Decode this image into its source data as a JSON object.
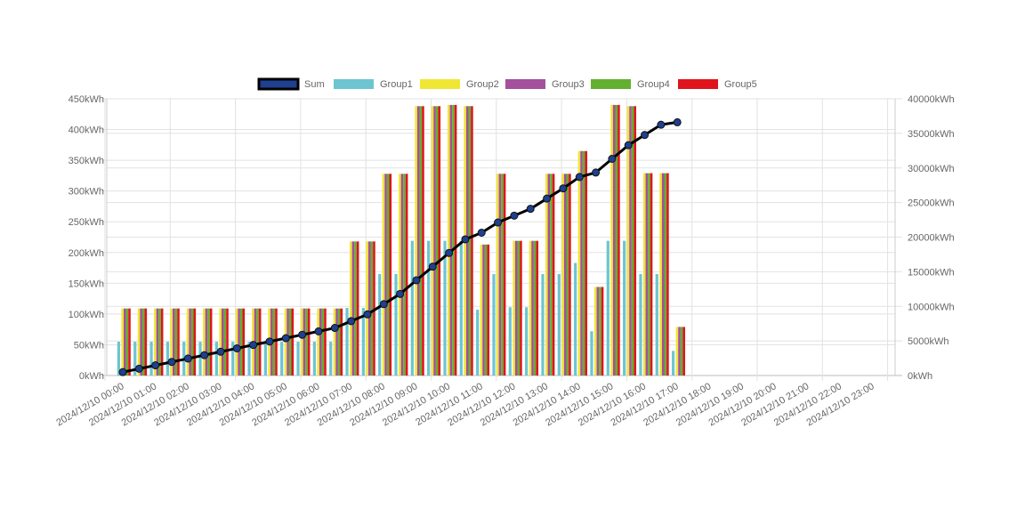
{
  "chart_data": {
    "type": "bar",
    "title": "",
    "x_tick_labels": [
      "2024/12/10 00:00",
      "2024/12/10 01:00",
      "2024/12/10 02:00",
      "2024/12/10 03:00",
      "2024/12/10 04:00",
      "2024/12/10 05:00",
      "2024/12/10 06:00",
      "2024/12/10 07:00",
      "2024/12/10 08:00",
      "2024/12/10 09:00",
      "2024/12/10 10:00",
      "2024/12/10 11:00",
      "2024/12/10 12:00",
      "2024/12/10 13:00",
      "2024/12/10 14:00",
      "2024/12/10 15:00",
      "2024/12/10 16:00",
      "2024/12/10 17:00",
      "2024/12/10 18:00",
      "2024/12/10 19:00",
      "2024/12/10 20:00",
      "2024/12/10 21:00",
      "2024/12/10 22:00",
      "2024/12/10 23:00"
    ],
    "x": [
      "00:00",
      "00:30",
      "01:00",
      "01:30",
      "02:00",
      "02:30",
      "03:00",
      "03:30",
      "04:00",
      "04:30",
      "05:00",
      "05:30",
      "06:00",
      "06:30",
      "07:00",
      "07:30",
      "08:00",
      "08:30",
      "09:00",
      "09:30",
      "10:00",
      "10:30",
      "11:00",
      "11:30",
      "12:00",
      "12:30",
      "13:00",
      "13:30",
      "14:00",
      "14:30",
      "15:00",
      "15:30",
      "16:00",
      "16:30",
      "17:00"
    ],
    "left_axis": {
      "ticks": [
        "0kWh",
        "50kWh",
        "100kWh",
        "150kWh",
        "200kWh",
        "250kWh",
        "300kWh",
        "350kWh",
        "400kWh",
        "450kWh"
      ],
      "ylim": [
        0,
        450
      ]
    },
    "right_axis": {
      "ticks": [
        "0kWh",
        "5000kWh",
        "10000kWh",
        "15000kWh",
        "20000kWh",
        "25000kWh",
        "30000kWh",
        "35000kWh",
        "40000kWh"
      ],
      "ylim": [
        0,
        40000
      ]
    },
    "grid": true,
    "legend_position": "top",
    "series": [
      {
        "name": "Sum",
        "type": "line",
        "axis": "right",
        "color": "#1f3f8f",
        "values": [
          491,
          982,
          1473,
          1964,
          2455,
          2946,
          3437,
          3928,
          4419,
          4910,
          5401,
          5892,
          6383,
          6874,
          7856,
          8838,
          10315,
          11792,
          13763,
          15734,
          17713,
          19684,
          20643,
          22120,
          23107,
          24094,
          25571,
          27048,
          28691,
          29339,
          31318,
          33289,
          34770,
          36251,
          36607
        ]
      },
      {
        "name": "Group1",
        "type": "bar",
        "axis": "left",
        "color": "#6cc5d1",
        "values": [
          55,
          55,
          55,
          55,
          55,
          55,
          55,
          55,
          55,
          55,
          55,
          55,
          55,
          55,
          110,
          110,
          165,
          165,
          219,
          219,
          219,
          219,
          107,
          165,
          111,
          111,
          165,
          165,
          183,
          72,
          219,
          219,
          165,
          165,
          40
        ]
      },
      {
        "name": "Group2",
        "type": "bar",
        "axis": "left",
        "color": "#f0e635",
        "values": [
          109,
          109,
          109,
          109,
          109,
          109,
          109,
          109,
          109,
          109,
          109,
          109,
          109,
          109,
          218,
          218,
          328,
          328,
          438,
          438,
          440,
          438,
          213,
          328,
          219,
          219,
          328,
          328,
          365,
          144,
          440,
          438,
          329,
          329,
          79
        ]
      },
      {
        "name": "Group3",
        "type": "bar",
        "axis": "left",
        "color": "#a4509c",
        "values": [
          109,
          109,
          109,
          109,
          109,
          109,
          109,
          109,
          109,
          109,
          109,
          109,
          109,
          109,
          218,
          218,
          328,
          328,
          438,
          438,
          440,
          438,
          213,
          328,
          219,
          219,
          328,
          328,
          365,
          144,
          440,
          438,
          329,
          329,
          79
        ]
      },
      {
        "name": "Group4",
        "type": "bar",
        "axis": "left",
        "color": "#63b030",
        "values": [
          109,
          109,
          109,
          109,
          109,
          109,
          109,
          109,
          109,
          109,
          109,
          109,
          109,
          109,
          218,
          218,
          328,
          328,
          438,
          438,
          440,
          438,
          213,
          328,
          219,
          219,
          328,
          328,
          365,
          144,
          440,
          438,
          329,
          329,
          79
        ]
      },
      {
        "name": "Group5",
        "type": "bar",
        "axis": "left",
        "color": "#e0141c",
        "values": [
          109,
          109,
          109,
          109,
          109,
          109,
          109,
          109,
          109,
          109,
          109,
          109,
          109,
          109,
          218,
          218,
          328,
          328,
          438,
          438,
          440,
          438,
          213,
          328,
          219,
          219,
          328,
          328,
          365,
          144,
          440,
          438,
          329,
          329,
          79
        ]
      }
    ]
  }
}
